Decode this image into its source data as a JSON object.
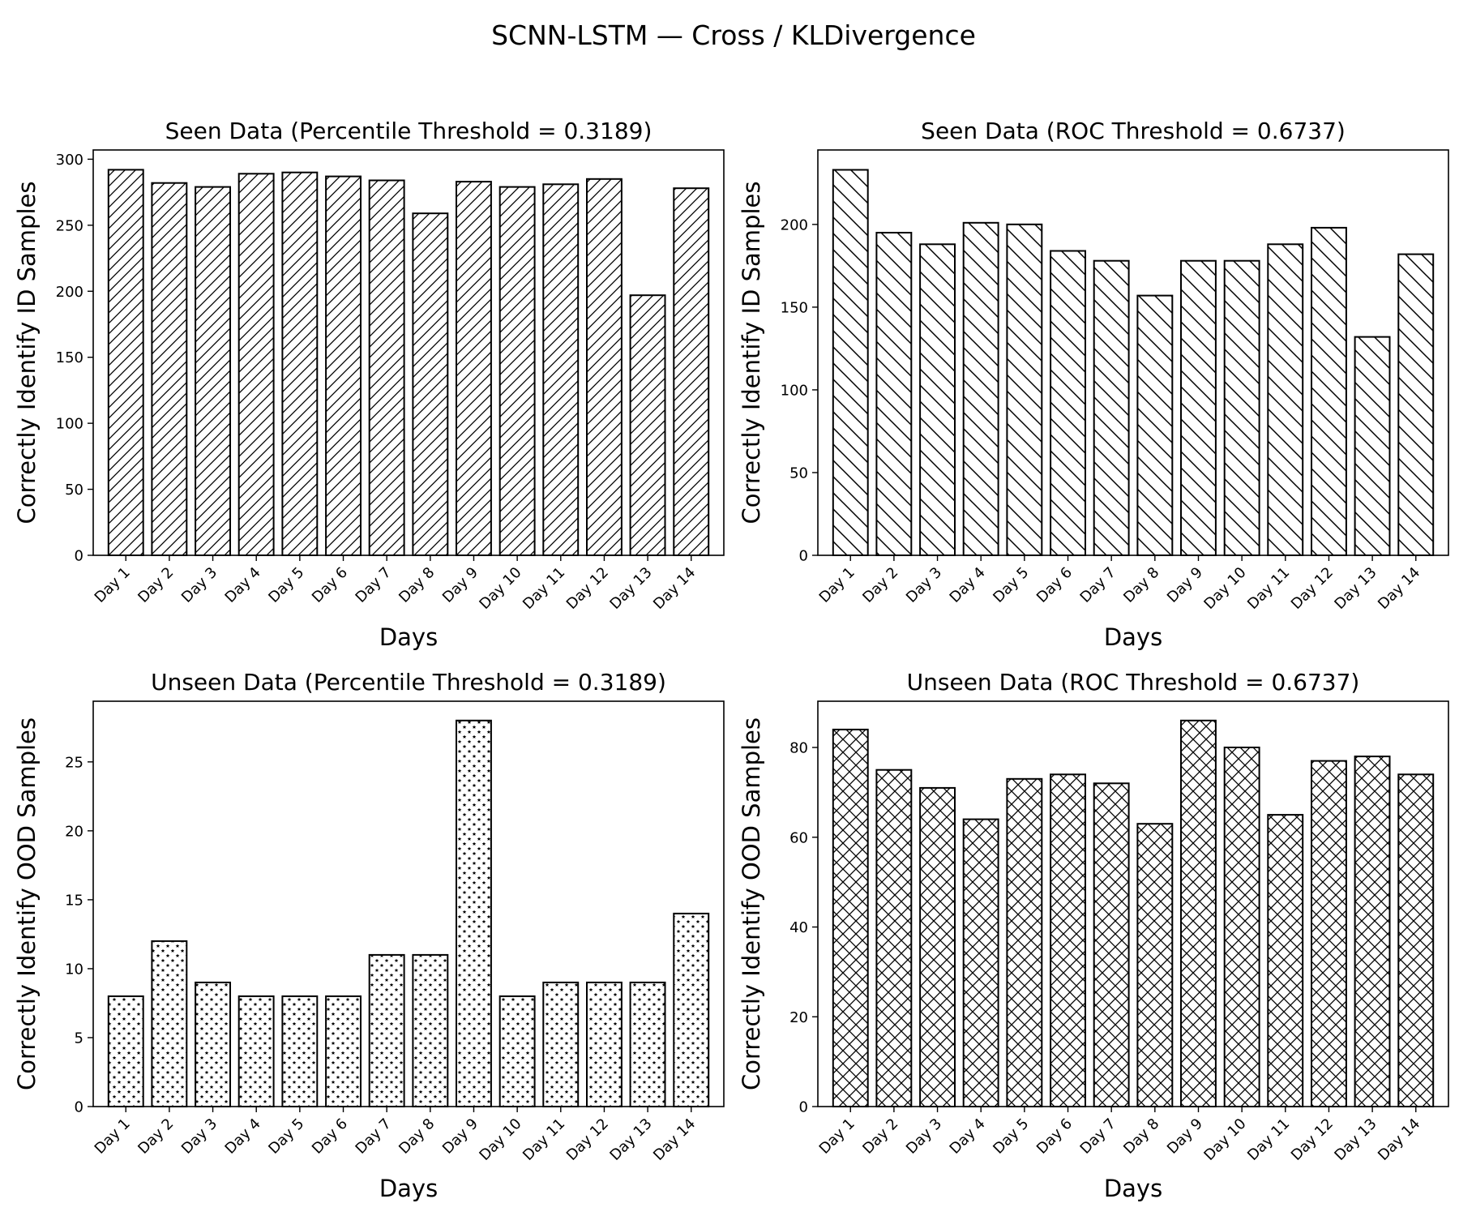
{
  "suptitle": "SCNN-LSTM — Cross / KLDivergence",
  "colors": {
    "bar_fill": "#ffffff",
    "edge": "#000000"
  },
  "chart_data": [
    {
      "type": "bar",
      "title": "Seen Data (Percentile Threshold = 0.3189)",
      "xlabel": "Days",
      "ylabel": "Correctly Identify ID Samples",
      "hatch": "forward-diagonal",
      "categories": [
        "Day 1",
        "Day 2",
        "Day 3",
        "Day 4",
        "Day 5",
        "Day 6",
        "Day 7",
        "Day 8",
        "Day 9",
        "Day 10",
        "Day 11",
        "Day 12",
        "Day 13",
        "Day 14"
      ],
      "values": [
        292,
        282,
        279,
        289,
        290,
        287,
        284,
        259,
        283,
        279,
        281,
        285,
        197,
        278
      ],
      "ylim": [
        0,
        307
      ],
      "yticks": [
        0,
        50,
        100,
        150,
        200,
        250,
        300
      ],
      "grid": false,
      "legend": "none"
    },
    {
      "type": "bar",
      "title": "Seen Data (ROC Threshold = 0.6737)",
      "xlabel": "Days",
      "ylabel": "Correctly Identify ID Samples",
      "hatch": "back-diagonal",
      "categories": [
        "Day 1",
        "Day 2",
        "Day 3",
        "Day 4",
        "Day 5",
        "Day 6",
        "Day 7",
        "Day 8",
        "Day 9",
        "Day 10",
        "Day 11",
        "Day 12",
        "Day 13",
        "Day 14"
      ],
      "values": [
        233,
        195,
        188,
        201,
        200,
        184,
        178,
        157,
        178,
        178,
        188,
        198,
        132,
        182
      ],
      "ylim": [
        0,
        245
      ],
      "yticks": [
        0,
        50,
        100,
        150,
        200
      ],
      "grid": false,
      "legend": "none"
    },
    {
      "type": "bar",
      "title": "Unseen Data (Percentile Threshold = 0.3189)",
      "xlabel": "Days",
      "ylabel": "Correctly Identify OOD Samples",
      "hatch": "stars",
      "categories": [
        "Day 1",
        "Day 2",
        "Day 3",
        "Day 4",
        "Day 5",
        "Day 6",
        "Day 7",
        "Day 8",
        "Day 9",
        "Day 10",
        "Day 11",
        "Day 12",
        "Day 13",
        "Day 14"
      ],
      "values": [
        8,
        12,
        9,
        8,
        8,
        8,
        11,
        11,
        28,
        8,
        9,
        9,
        9,
        14
      ],
      "ylim": [
        0,
        29.4
      ],
      "yticks": [
        0,
        5,
        10,
        15,
        20,
        25
      ],
      "grid": false,
      "legend": "none"
    },
    {
      "type": "bar",
      "title": "Unseen Data (ROC Threshold = 0.6737)",
      "xlabel": "Days",
      "ylabel": "Correctly Identify OOD Samples",
      "hatch": "crosshatch",
      "categories": [
        "Day 1",
        "Day 2",
        "Day 3",
        "Day 4",
        "Day 5",
        "Day 6",
        "Day 7",
        "Day 8",
        "Day 9",
        "Day 10",
        "Day 11",
        "Day 12",
        "Day 13",
        "Day 14"
      ],
      "values": [
        84,
        75,
        71,
        64,
        73,
        74,
        72,
        63,
        86,
        80,
        65,
        77,
        78,
        74
      ],
      "ylim": [
        0,
        90.3
      ],
      "yticks": [
        0,
        20,
        40,
        60,
        80
      ],
      "grid": false,
      "legend": "none"
    }
  ]
}
